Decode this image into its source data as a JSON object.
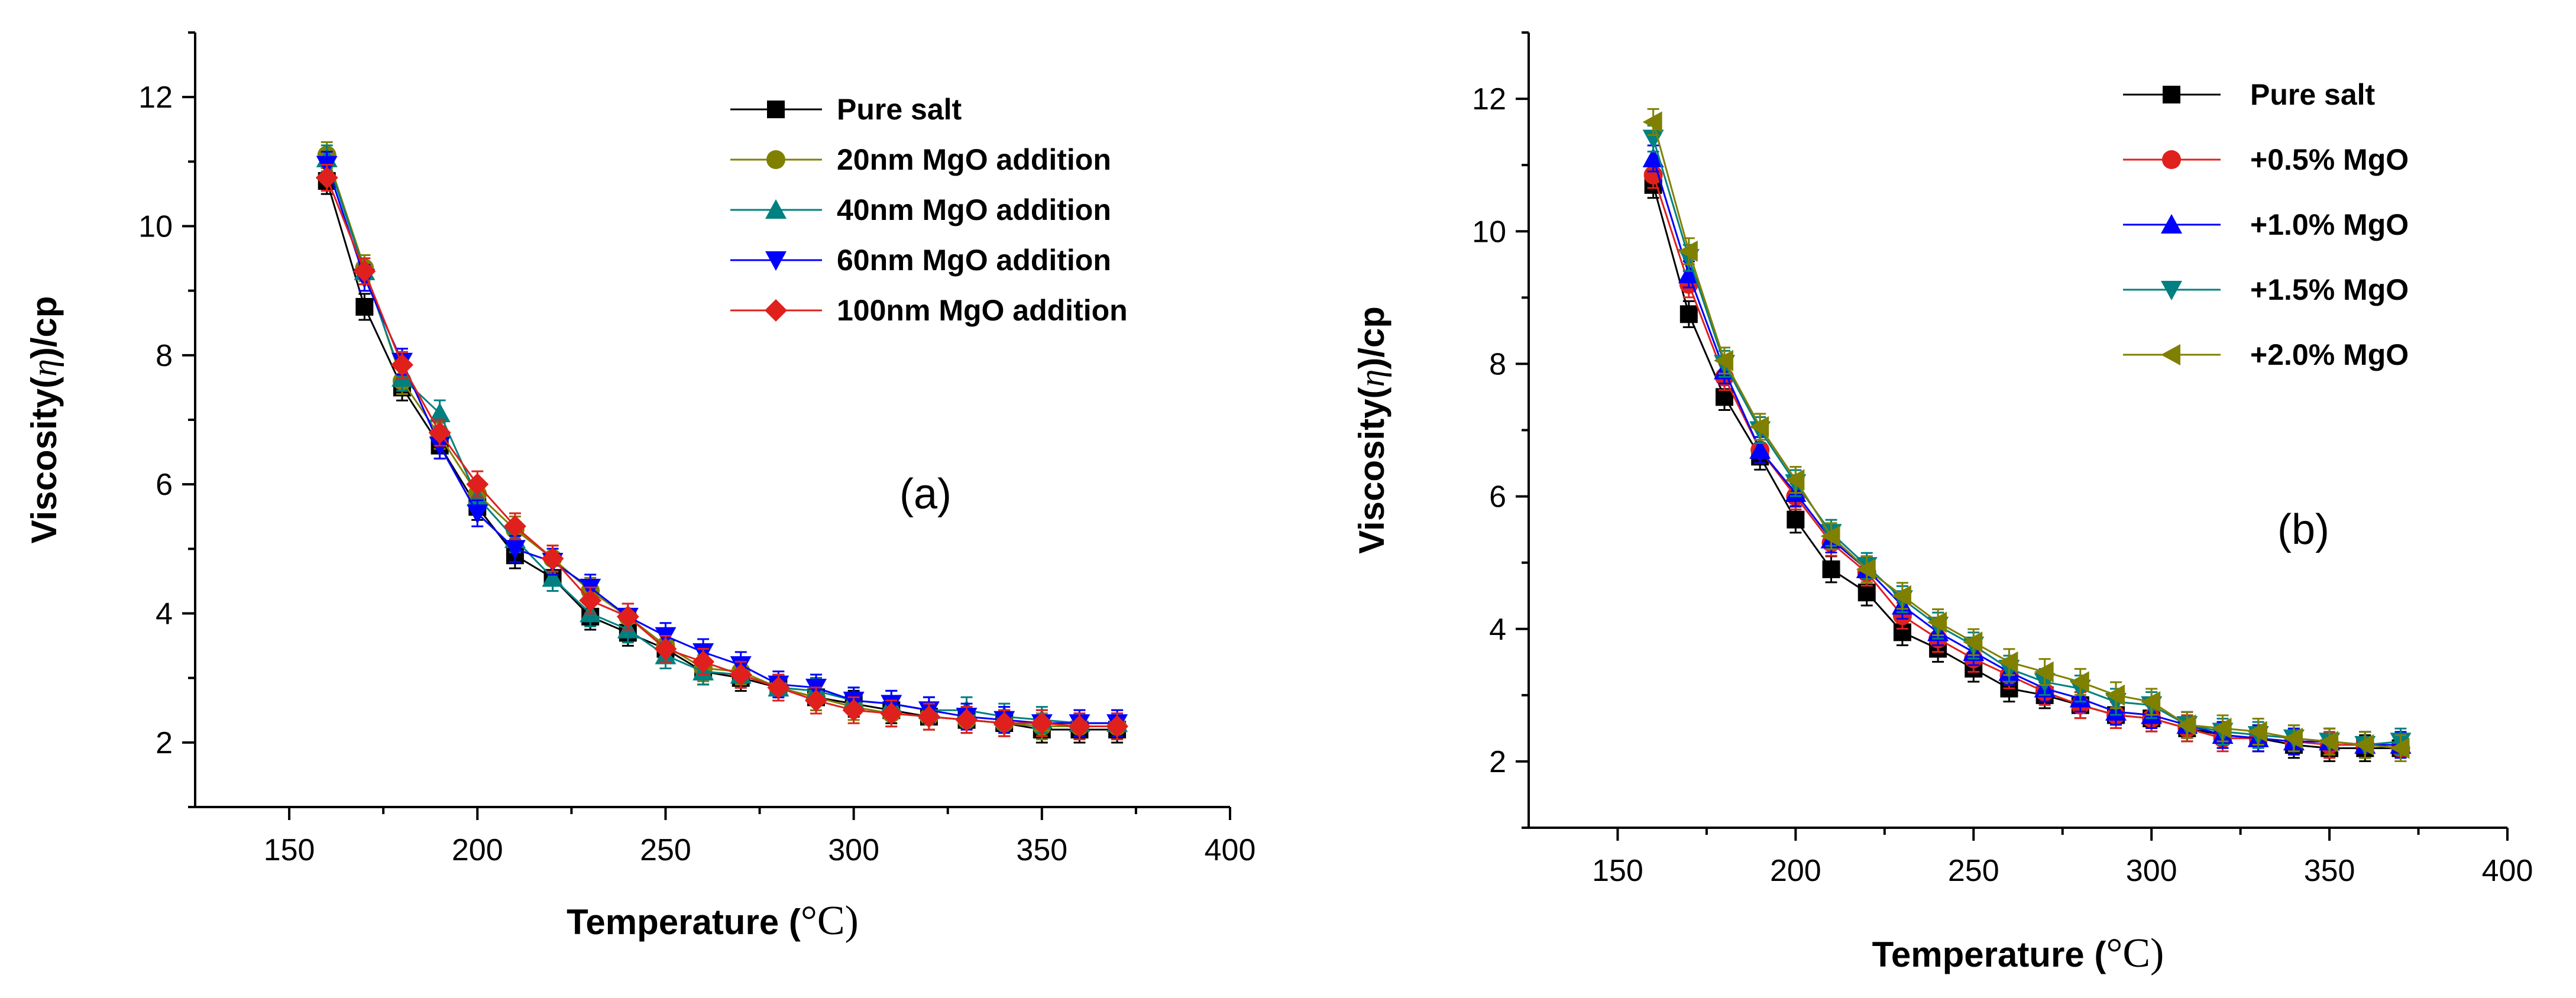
{
  "chart_data": [
    {
      "type": "line",
      "panel_label": "(a)",
      "xlabel_prefix": "Temperature (",
      "xlabel_unit": "°C",
      "xlabel_suffix": ")",
      "ylabel_prefix": "Viscosity(",
      "ylabel_symbol": "η",
      "ylabel_suffix": ")/cp",
      "xlim": [
        125,
        400
      ],
      "ylim": [
        1,
        13
      ],
      "xticks": [
        150,
        200,
        250,
        300,
        350,
        400
      ],
      "yticks": [
        2,
        4,
        6,
        8,
        10,
        12
      ],
      "grid": false,
      "legend_position": "top-right",
      "x": [
        160,
        170,
        180,
        190,
        200,
        210,
        220,
        230,
        240,
        250,
        260,
        270,
        280,
        290,
        300,
        310,
        320,
        330,
        340,
        350,
        360,
        370
      ],
      "series": [
        {
          "name": "Pure salt",
          "color": "#000000",
          "marker": "square",
          "values": [
            10.7,
            8.75,
            7.5,
            6.6,
            5.65,
            4.9,
            4.55,
            3.95,
            3.7,
            3.45,
            3.1,
            3.0,
            2.85,
            2.7,
            2.6,
            2.5,
            2.4,
            2.35,
            2.3,
            2.2,
            2.2,
            2.2
          ]
        },
        {
          "name": "20nm MgO addition",
          "color": "#808000",
          "marker": "circle",
          "values": [
            11.1,
            9.35,
            7.6,
            6.75,
            5.85,
            5.3,
            4.85,
            4.35,
            3.95,
            3.5,
            3.15,
            3.1,
            2.85,
            2.7,
            2.55,
            2.45,
            2.4,
            2.35,
            2.3,
            2.25,
            2.25,
            2.25
          ]
        },
        {
          "name": "40nm MgO addition",
          "color": "#008080",
          "marker": "triangle-up",
          "values": [
            11.05,
            9.3,
            7.65,
            7.1,
            5.8,
            5.15,
            4.55,
            4.0,
            3.75,
            3.35,
            3.1,
            3.05,
            2.85,
            2.8,
            2.65,
            2.6,
            2.5,
            2.5,
            2.4,
            2.35,
            2.3,
            2.3
          ]
        },
        {
          "name": "60nm MgO addition",
          "color": "#0000ff",
          "marker": "triangle-down",
          "values": [
            10.95,
            9.2,
            7.9,
            6.6,
            5.55,
            5.0,
            4.8,
            4.4,
            3.95,
            3.65,
            3.4,
            3.2,
            2.9,
            2.85,
            2.65,
            2.6,
            2.5,
            2.4,
            2.35,
            2.3,
            2.3,
            2.3
          ]
        },
        {
          "name": "100nm MgO addition",
          "color": "#e0201c",
          "marker": "diamond",
          "values": [
            10.75,
            9.3,
            7.85,
            6.8,
            6.0,
            5.35,
            4.85,
            4.2,
            3.95,
            3.45,
            3.25,
            3.05,
            2.85,
            2.65,
            2.5,
            2.45,
            2.4,
            2.35,
            2.3,
            2.3,
            2.25,
            2.25
          ]
        }
      ]
    },
    {
      "type": "line",
      "panel_label": "(b)",
      "xlabel_prefix": "Temperature (",
      "xlabel_unit": "°C",
      "xlabel_suffix": ")",
      "ylabel_prefix": "Viscosity(",
      "ylabel_symbol": "η",
      "ylabel_suffix": ")/cp",
      "xlim": [
        125,
        400
      ],
      "ylim": [
        1,
        13
      ],
      "xticks": [
        150,
        200,
        250,
        300,
        350,
        400
      ],
      "yticks": [
        2,
        4,
        6,
        8,
        10,
        12
      ],
      "grid": false,
      "legend_position": "top-right",
      "x": [
        160,
        170,
        180,
        190,
        200,
        210,
        220,
        230,
        240,
        250,
        260,
        270,
        280,
        290,
        300,
        310,
        320,
        330,
        340,
        350,
        360,
        370
      ],
      "series": [
        {
          "name": "Pure salt",
          "color": "#000000",
          "marker": "square",
          "values": [
            10.7,
            8.75,
            7.5,
            6.6,
            5.65,
            4.9,
            4.55,
            3.95,
            3.7,
            3.4,
            3.1,
            3.0,
            2.85,
            2.7,
            2.65,
            2.5,
            2.4,
            2.35,
            2.25,
            2.2,
            2.2,
            2.2
          ]
        },
        {
          "name": "+0.5% MgO",
          "color": "#e0201c",
          "marker": "circle",
          "values": [
            10.85,
            9.2,
            7.8,
            6.7,
            6.0,
            5.3,
            4.85,
            4.2,
            3.85,
            3.55,
            3.3,
            3.05,
            2.85,
            2.7,
            2.65,
            2.5,
            2.35,
            2.35,
            2.3,
            2.25,
            2.25,
            2.2
          ]
        },
        {
          "name": "+1.0% MgO",
          "color": "#0000ff",
          "marker": "triangle-up",
          "values": [
            11.1,
            9.35,
            7.9,
            6.7,
            6.05,
            5.35,
            4.9,
            4.35,
            3.95,
            3.65,
            3.35,
            3.1,
            2.95,
            2.75,
            2.7,
            2.55,
            2.4,
            2.35,
            2.3,
            2.3,
            2.25,
            2.25
          ]
        },
        {
          "name": "+1.5% MgO",
          "color": "#008080",
          "marker": "triangle-down",
          "values": [
            11.4,
            9.6,
            8.0,
            7.0,
            6.2,
            5.45,
            4.95,
            4.45,
            4.05,
            3.75,
            3.4,
            3.2,
            3.1,
            2.9,
            2.85,
            2.55,
            2.45,
            2.4,
            2.35,
            2.3,
            2.25,
            2.3
          ]
        },
        {
          "name": "+2.0% MgO",
          "color": "#808000",
          "marker": "triangle-left",
          "values": [
            11.65,
            9.7,
            8.05,
            7.05,
            6.25,
            5.4,
            4.9,
            4.5,
            4.1,
            3.8,
            3.5,
            3.35,
            3.2,
            3.0,
            2.9,
            2.55,
            2.5,
            2.45,
            2.35,
            2.3,
            2.25,
            2.2
          ]
        }
      ]
    }
  ]
}
